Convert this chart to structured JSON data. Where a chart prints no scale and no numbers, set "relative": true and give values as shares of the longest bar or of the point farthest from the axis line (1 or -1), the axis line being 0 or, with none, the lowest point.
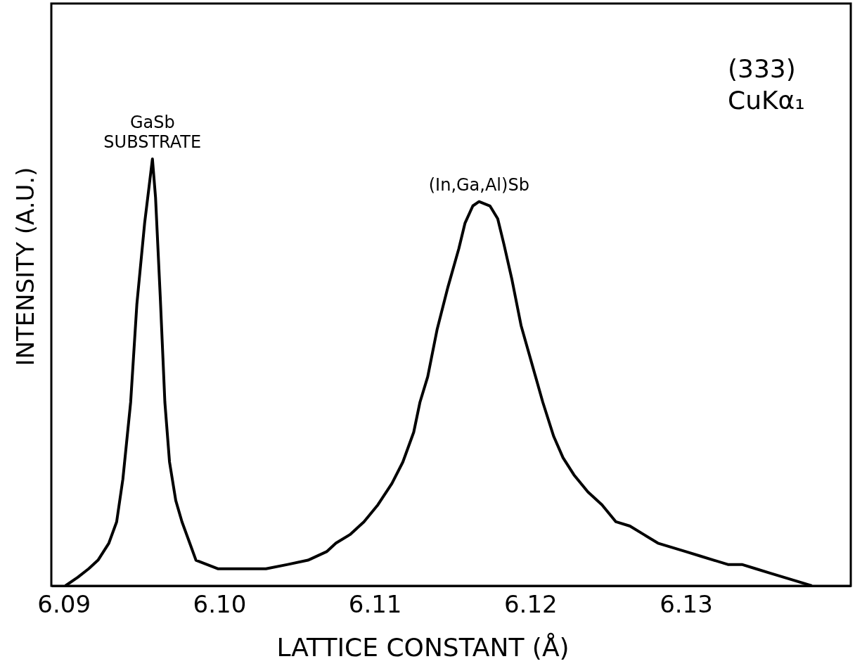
{
  "chart_data": {
    "type": "line",
    "relative": true,
    "xlabel": "LATTICE CONSTANT (Å)",
    "ylabel": "INTENSITY (A.U.)",
    "xlim": [
      6.0892,
      6.1406
    ],
    "xticks": [
      6.09,
      {
        "value": 6.1,
        "label": "6.10"
      },
      6.11,
      6.12,
      6.13
    ],
    "series": [
      {
        "color": "#000000",
        "x": [
          6.0901,
          6.0909,
          6.0916,
          6.0922,
          6.0929,
          6.0934,
          6.0938,
          6.0943,
          6.0947,
          6.0952,
          6.0955,
          6.0957,
          6.0959,
          6.0962,
          6.0965,
          6.0968,
          6.0972,
          6.0976,
          6.0981,
          6.0985,
          6.0992,
          6.0999,
          6.1008,
          6.1019,
          6.103,
          6.1044,
          6.1057,
          6.1069,
          6.1075,
          6.1084,
          6.1093,
          6.1102,
          6.1111,
          6.1118,
          6.1125,
          6.1129,
          6.1134,
          6.114,
          6.1147,
          6.1154,
          6.1158,
          6.1163,
          6.1167,
          6.1174,
          6.1179,
          6.1183,
          6.1188,
          6.1194,
          6.1201,
          6.1208,
          6.1215,
          6.1221,
          6.1228,
          6.1237,
          6.1246,
          6.1255,
          6.1264,
          6.1273,
          6.1282,
          6.1291,
          6.13,
          6.1309,
          6.1318,
          6.1327,
          6.1336,
          6.1345,
          6.1354,
          6.1363,
          6.1372,
          6.1381
        ],
        "values": [
          0,
          0.02,
          0.04,
          0.06,
          0.1,
          0.15,
          0.25,
          0.43,
          0.66,
          0.85,
          0.94,
          1,
          0.91,
          0.68,
          0.43,
          0.29,
          0.2,
          0.15,
          0.1,
          0.06,
          0.05,
          0.04,
          0.04,
          0.04,
          0.04,
          0.05,
          0.06,
          0.08,
          0.1,
          0.12,
          0.15,
          0.19,
          0.24,
          0.29,
          0.36,
          0.43,
          0.49,
          0.6,
          0.7,
          0.79,
          0.85,
          0.89,
          0.9,
          0.89,
          0.86,
          0.8,
          0.72,
          0.61,
          0.52,
          0.43,
          0.35,
          0.3,
          0.26,
          0.22,
          0.19,
          0.15,
          0.14,
          0.12,
          0.1,
          0.09,
          0.08,
          0.07,
          0.06,
          0.05,
          0.05,
          0.04,
          0.03,
          0.02,
          0.01,
          0
        ]
      }
    ],
    "annotations": [
      {
        "text": "GaSb\nSUBSTRATE",
        "x": 6.0957,
        "y": 1
      },
      {
        "text": "(In,Ga,Al)Sb",
        "x": 6.1167,
        "y": 0.9
      },
      "(333)\nCuKα₁"
    ],
    "grid": false,
    "marker": "none",
    "line_style": "solid"
  }
}
